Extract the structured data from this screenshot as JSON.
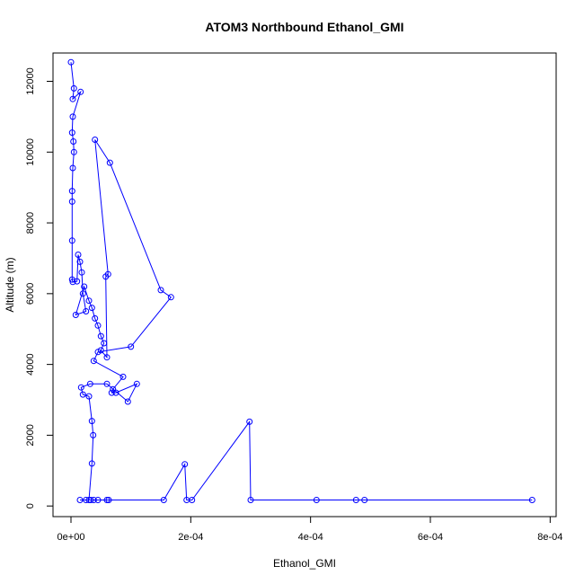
{
  "chart_data": {
    "type": "line",
    "title": "ATOM3 Northbound Ethanol_GMI",
    "xlabel": "Ethanol_GMI",
    "ylabel": "Altitude (m)",
    "xlim": [
      -3e-05,
      0.00081
    ],
    "ylim": [
      -300,
      12800
    ],
    "x_ticks": [
      0,
      0.0002,
      0.0004,
      0.0006,
      0.0008
    ],
    "x_tick_labels": [
      "0e+00",
      "2e-04",
      "4e-04",
      "6e-04",
      "8e-04"
    ],
    "y_ticks": [
      0,
      2000,
      4000,
      6000,
      8000,
      10000,
      12000
    ],
    "y_tick_labels": [
      "0",
      "2000",
      "4000",
      "6000",
      "8000",
      "10000",
      "12000"
    ],
    "series": [
      {
        "color": "#0000ff",
        "marker": "open-circle",
        "points": [
          [
            0.0,
            12540
          ],
          [
            5e-06,
            11800
          ],
          [
            3e-06,
            11500
          ],
          [
            1.6e-05,
            11700
          ],
          [
            3e-06,
            11000
          ],
          [
            2e-06,
            10550
          ],
          [
            4e-06,
            10300
          ],
          [
            5e-06,
            10000
          ],
          [
            3e-06,
            9550
          ],
          [
            2e-06,
            8900
          ],
          [
            2e-06,
            8600
          ],
          [
            2e-06,
            7500
          ],
          [
            2e-06,
            6400
          ],
          [
            3e-06,
            6330
          ],
          [
            1e-05,
            6350
          ],
          [
            1.2e-05,
            7100
          ],
          [
            1.5e-05,
            6900
          ],
          [
            1.8e-05,
            6600
          ],
          [
            2e-05,
            6000
          ],
          [
            2.5e-05,
            5500
          ],
          [
            8e-06,
            5400
          ],
          [
            2.2e-05,
            6200
          ],
          [
            3e-05,
            5800
          ],
          [
            3.5e-05,
            5600
          ],
          [
            4e-05,
            5300
          ],
          [
            4.5e-05,
            5100
          ],
          [
            5e-05,
            4800
          ],
          [
            5.5e-05,
            4600
          ],
          [
            5e-05,
            4400
          ],
          [
            6e-05,
            4200
          ],
          [
            5.8e-05,
            6480
          ],
          [
            6.2e-05,
            6550
          ],
          [
            4e-05,
            10350
          ],
          [
            6.5e-05,
            9700
          ],
          [
            0.00015,
            6100
          ],
          [
            0.000167,
            5900
          ],
          [
            0.0001,
            4500
          ],
          [
            4.5e-05,
            4350
          ],
          [
            3.8e-05,
            4100
          ],
          [
            8.7e-05,
            3650
          ],
          [
            7e-05,
            3300
          ],
          [
            6.8e-05,
            3200
          ],
          [
            7.5e-05,
            3200
          ],
          [
            0.00011,
            3450
          ],
          [
            9.5e-05,
            2950
          ],
          [
            6e-05,
            3450
          ],
          [
            3.2e-05,
            3450
          ],
          [
            1.7e-05,
            3350
          ],
          [
            2e-05,
            3150
          ],
          [
            3e-05,
            3100
          ],
          [
            3.5e-05,
            2400
          ],
          [
            3.7e-05,
            2000
          ],
          [
            3.5e-05,
            1200
          ],
          [
            3e-05,
            170
          ],
          [
            3.3e-05,
            170
          ],
          [
            3.8e-05,
            170
          ],
          [
            4.5e-05,
            170
          ],
          [
            1.5e-05,
            170
          ],
          [
            2.5e-05,
            170
          ],
          [
            6e-05,
            170
          ],
          [
            6.3e-05,
            170
          ],
          [
            0.000155,
            170
          ],
          [
            0.00019,
            1180
          ],
          [
            0.000193,
            170
          ],
          [
            0.000202,
            170
          ],
          [
            0.000298,
            2380
          ],
          [
            0.0003,
            170
          ],
          [
            0.00041,
            170
          ],
          [
            0.000476,
            170
          ],
          [
            0.00049,
            170
          ],
          [
            0.00077,
            170
          ]
        ]
      }
    ],
    "grid": false,
    "legend": "none"
  }
}
